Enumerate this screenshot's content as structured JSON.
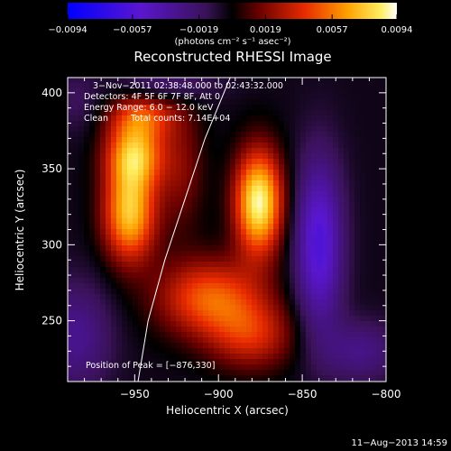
{
  "chart_data": {
    "type": "heatmap",
    "title": "Reconstructed RHESSI Image",
    "xlabel": "Heliocentric X (arcsec)",
    "ylabel": "Heliocentric Y (arcsec)",
    "xlim": [
      -990,
      -800
    ],
    "ylim": [
      210,
      410
    ],
    "x_ticks": [
      -950,
      -900,
      -850,
      -800
    ],
    "y_ticks": [
      250,
      300,
      350,
      400
    ],
    "x_tick_labels": [
      "−950",
      "−900",
      "−850",
      "−800"
    ],
    "y_tick_labels": [
      "250",
      "300",
      "350",
      "400"
    ],
    "colorbar": {
      "min": -0.0094,
      "max": 0.0094,
      "ticks": [
        -0.0094,
        -0.0057,
        -0.0019,
        0.0019,
        0.0057,
        0.0094
      ],
      "tick_labels": [
        "−0.0094",
        "−0.0057",
        "−0.0019",
        "0.0019",
        "0.0057",
        "0.0094"
      ],
      "unit_label": "(photons cm⁻² s⁻¹ asec⁻²)"
    },
    "annotations": {
      "date_range": "3−Nov−2011 02:38:48.000 to 02:43:32.000",
      "detectors": "Detectors: 4F 5F 6F 7F 8F, Att 0",
      "energy_range": "Energy Range: 6.0 − 12.0 keV",
      "clean": "Clean",
      "total_counts": "Total counts: 7.14E+04",
      "peak_position": "Position of Peak = [−876,330]"
    },
    "peak": [
      -876,
      330
    ],
    "sources": [
      {
        "x": -953,
        "y": 320,
        "sx": 11,
        "sy": 22,
        "amp": 0.0078
      },
      {
        "x": -950,
        "y": 360,
        "sx": 12,
        "sy": 16,
        "amp": 0.0072
      },
      {
        "x": -945,
        "y": 385,
        "sx": 14,
        "sy": 10,
        "amp": 0.004
      },
      {
        "x": -876,
        "y": 328,
        "sx": 10,
        "sy": 24,
        "amp": 0.0094
      },
      {
        "x": -905,
        "y": 265,
        "sx": 22,
        "sy": 18,
        "amp": 0.0055
      },
      {
        "x": -880,
        "y": 240,
        "sx": 18,
        "sy": 16,
        "amp": 0.0038
      },
      {
        "x": -922,
        "y": 350,
        "sx": 10,
        "sy": 30,
        "amp": 0.0022
      },
      {
        "x": -840,
        "y": 300,
        "sx": 10,
        "sy": 40,
        "amp": -0.0055
      },
      {
        "x": -815,
        "y": 230,
        "sx": 16,
        "sy": 14,
        "amp": -0.0025
      },
      {
        "x": -985,
        "y": 240,
        "sx": 15,
        "sy": 25,
        "amp": -0.0028
      },
      {
        "x": -930,
        "y": 405,
        "sx": 20,
        "sy": 8,
        "amp": -0.002
      },
      {
        "x": -985,
        "y": 395,
        "sx": 10,
        "sy": 15,
        "amp": -0.0012
      }
    ],
    "limb_curve": [
      [
        -948,
        210
      ],
      [
        -942,
        250
      ],
      [
        -932,
        290
      ],
      [
        -920,
        330
      ],
      [
        -908,
        370
      ],
      [
        -893,
        410
      ]
    ]
  },
  "footer": {
    "timestamp": "11−Aug−2013 14:59"
  }
}
